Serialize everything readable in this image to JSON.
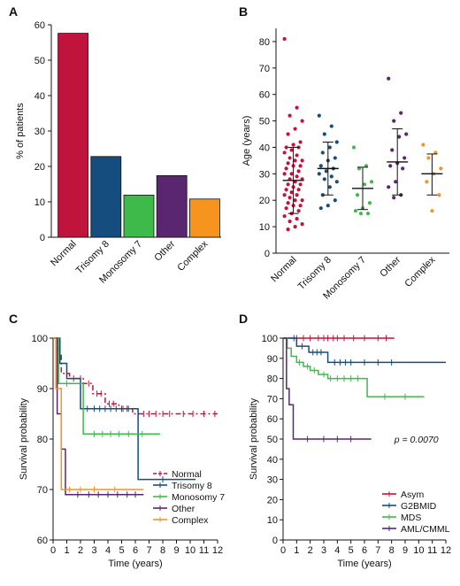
{
  "chart_data": [
    {
      "panel": "A",
      "type": "bar",
      "ylabel": "% of patients",
      "ylim": [
        0,
        60
      ],
      "yticks": [
        0,
        10,
        20,
        30,
        40,
        50,
        60
      ],
      "categories": [
        "Normal",
        "Trisomy 8",
        "Monosomy 7",
        "Other",
        "Complex"
      ],
      "values": [
        57.6,
        22.8,
        11.9,
        17.4,
        10.8
      ],
      "colors": [
        "#c1143c",
        "#144d7e",
        "#3dba4a",
        "#5a2670",
        "#f7941d"
      ]
    },
    {
      "panel": "B",
      "type": "scatter",
      "ylabel": "Age (years)",
      "ylim": [
        0,
        85
      ],
      "yticks": [
        0,
        10,
        20,
        30,
        40,
        50,
        60,
        70,
        80
      ],
      "categories": [
        "Normal",
        "Trisomy 8",
        "Monosomy 7",
        "Other",
        "Complex"
      ],
      "colors": [
        "#c1143c",
        "#144d7e",
        "#3dba4a",
        "#5a2670",
        "#f7941d"
      ],
      "summary": [
        {
          "mean": 27.5,
          "sd_low": 15.0,
          "sd_high": 40.0
        },
        {
          "mean": 32.0,
          "sd_low": 22.0,
          "sd_high": 42.0
        },
        {
          "mean": 24.5,
          "sd_low": 16.5,
          "sd_high": 32.5
        },
        {
          "mean": 34.5,
          "sd_low": 22.0,
          "sd_high": 47.0
        },
        {
          "mean": 30.0,
          "sd_low": 22.0,
          "sd_high": 37.5
        }
      ],
      "points": [
        [
          81,
          55,
          52,
          50,
          47,
          45,
          42,
          41,
          40,
          40,
          39,
          38,
          37,
          36,
          35,
          35,
          34,
          33,
          33,
          32,
          31,
          30,
          30,
          29,
          28,
          28,
          27,
          26,
          26,
          25,
          24,
          24,
          23,
          22,
          22,
          21,
          20,
          20,
          19,
          18,
          18,
          17,
          16,
          15,
          14,
          13,
          12,
          11,
          10,
          9
        ],
        [
          52,
          48,
          45,
          42,
          40,
          38,
          36,
          35,
          33,
          32,
          31,
          30,
          29,
          28,
          27,
          25,
          22,
          20,
          18,
          17
        ],
        [
          40,
          33,
          32,
          27,
          26,
          22,
          19,
          17,
          16,
          15,
          15
        ],
        [
          66,
          53,
          50,
          45,
          44,
          39,
          36,
          34,
          33,
          32,
          27,
          25,
          22,
          21
        ],
        [
          41,
          38,
          36,
          32,
          30,
          27,
          22,
          16
        ]
      ]
    },
    {
      "panel": "C",
      "type": "line",
      "xlabel": "Time (years)",
      "ylabel": "Survival probability",
      "xlim": [
        0,
        12
      ],
      "ylim": [
        60,
        100
      ],
      "xticks": [
        0,
        1,
        2,
        3,
        4,
        5,
        6,
        7,
        8,
        9,
        10,
        11,
        12
      ],
      "yticks": [
        60,
        70,
        80,
        90,
        100
      ],
      "series": [
        {
          "name": "Normal",
          "color": "#c1143c",
          "dash": "6,3,2,3",
          "steps": [
            [
              0,
              100
            ],
            [
              0.3,
              97
            ],
            [
              0.6,
              93
            ],
            [
              1.2,
              92
            ],
            [
              2.2,
              91
            ],
            [
              2.9,
              89
            ],
            [
              3.8,
              87
            ],
            [
              4.8,
              86
            ],
            [
              5.8,
              85
            ],
            [
              12,
              85
            ]
          ],
          "censor": [
            1.0,
            1.5,
            2.0,
            2.6,
            3.2,
            3.5,
            4.1,
            4.4,
            5.1,
            5.5,
            6.2,
            6.6,
            7.0,
            7.5,
            8.0,
            8.5,
            9.5,
            10.2,
            11.0,
            11.8
          ]
        },
        {
          "name": "Trisomy 8",
          "color": "#144d7e",
          "dash": "",
          "steps": [
            [
              0,
              100
            ],
            [
              0.5,
              95
            ],
            [
              1.0,
              92
            ],
            [
              2.0,
              86
            ],
            [
              6.2,
              72
            ],
            [
              10.4,
              72
            ]
          ],
          "censor": [
            2.5,
            3.0,
            3.4,
            3.8,
            4.2,
            4.6,
            5.0,
            5.4,
            8.0
          ]
        },
        {
          "name": "Monosomy 7",
          "color": "#3dba4a",
          "dash": "",
          "steps": [
            [
              0,
              100
            ],
            [
              0.4,
              91
            ],
            [
              2.2,
              81
            ],
            [
              7.8,
              81
            ]
          ],
          "censor": [
            1.0,
            3.0,
            3.6,
            4.2,
            4.8,
            5.5,
            6.5
          ]
        },
        {
          "name": "Other",
          "color": "#5a2670",
          "dash": "",
          "steps": [
            [
              0,
              100
            ],
            [
              0.3,
              85
            ],
            [
              0.6,
              78
            ],
            [
              0.9,
              69
            ],
            [
              6.6,
              69
            ]
          ],
          "censor": [
            1.8,
            2.6,
            3.3,
            4.0,
            4.7,
            5.4,
            6.0
          ]
        },
        {
          "name": "Complex",
          "color": "#f7941d",
          "dash": "",
          "steps": [
            [
              0,
              100
            ],
            [
              0.2,
              90
            ],
            [
              0.6,
              70
            ],
            [
              6.6,
              70
            ]
          ],
          "censor": [
            1.2,
            2.0,
            3.0,
            4.5
          ]
        }
      ]
    },
    {
      "panel": "D",
      "type": "line",
      "xlabel": "Time (years)",
      "ylabel": "Survival probability",
      "xlim": [
        0,
        12
      ],
      "ylim": [
        0,
        100
      ],
      "xticks": [
        0,
        1,
        2,
        3,
        4,
        5,
        6,
        7,
        8,
        9,
        10,
        11,
        12
      ],
      "yticks": [
        0,
        10,
        20,
        30,
        40,
        50,
        60,
        70,
        80,
        90,
        100
      ],
      "annotation": "p = 0.0070",
      "series": [
        {
          "name": "Asym",
          "color": "#c1143c",
          "dash": "",
          "steps": [
            [
              0,
              100
            ],
            [
              8.2,
              100
            ]
          ],
          "censor": [
            1.0,
            1.5,
            2.0,
            2.6,
            3.0,
            3.3,
            3.7,
            4.0,
            4.5,
            5.2,
            6.0,
            7.0,
            7.6
          ]
        },
        {
          "name": "G2BMID",
          "color": "#144d7e",
          "dash": "",
          "steps": [
            [
              0,
              100
            ],
            [
              1.0,
              96
            ],
            [
              1.9,
              93
            ],
            [
              3.3,
              88
            ],
            [
              12,
              88
            ]
          ],
          "censor": [
            0.8,
            1.4,
            2.2,
            2.5,
            2.8,
            3.8,
            4.2,
            4.6,
            5.0,
            6.0,
            7.0,
            8.0
          ]
        },
        {
          "name": "MDS",
          "color": "#3dba4a",
          "dash": "",
          "steps": [
            [
              0,
              100
            ],
            [
              0.3,
              95
            ],
            [
              0.6,
              91
            ],
            [
              1.0,
              88
            ],
            [
              1.5,
              86
            ],
            [
              2.0,
              84
            ],
            [
              2.6,
              82
            ],
            [
              3.3,
              80
            ],
            [
              6.2,
              71
            ],
            [
              10.4,
              71
            ]
          ],
          "censor": [
            1.2,
            1.8,
            2.3,
            3.0,
            3.5,
            4.0,
            4.5,
            5.0,
            5.5,
            7.5,
            9.0
          ]
        },
        {
          "name": "AML/CMML",
          "color": "#5a2670",
          "dash": "",
          "steps": [
            [
              0,
              100
            ],
            [
              0.25,
              75
            ],
            [
              0.45,
              67
            ],
            [
              0.75,
              50
            ],
            [
              6.5,
              50
            ]
          ],
          "censor": [
            1.8,
            3.0,
            4.0,
            5.0
          ]
        }
      ]
    }
  ]
}
